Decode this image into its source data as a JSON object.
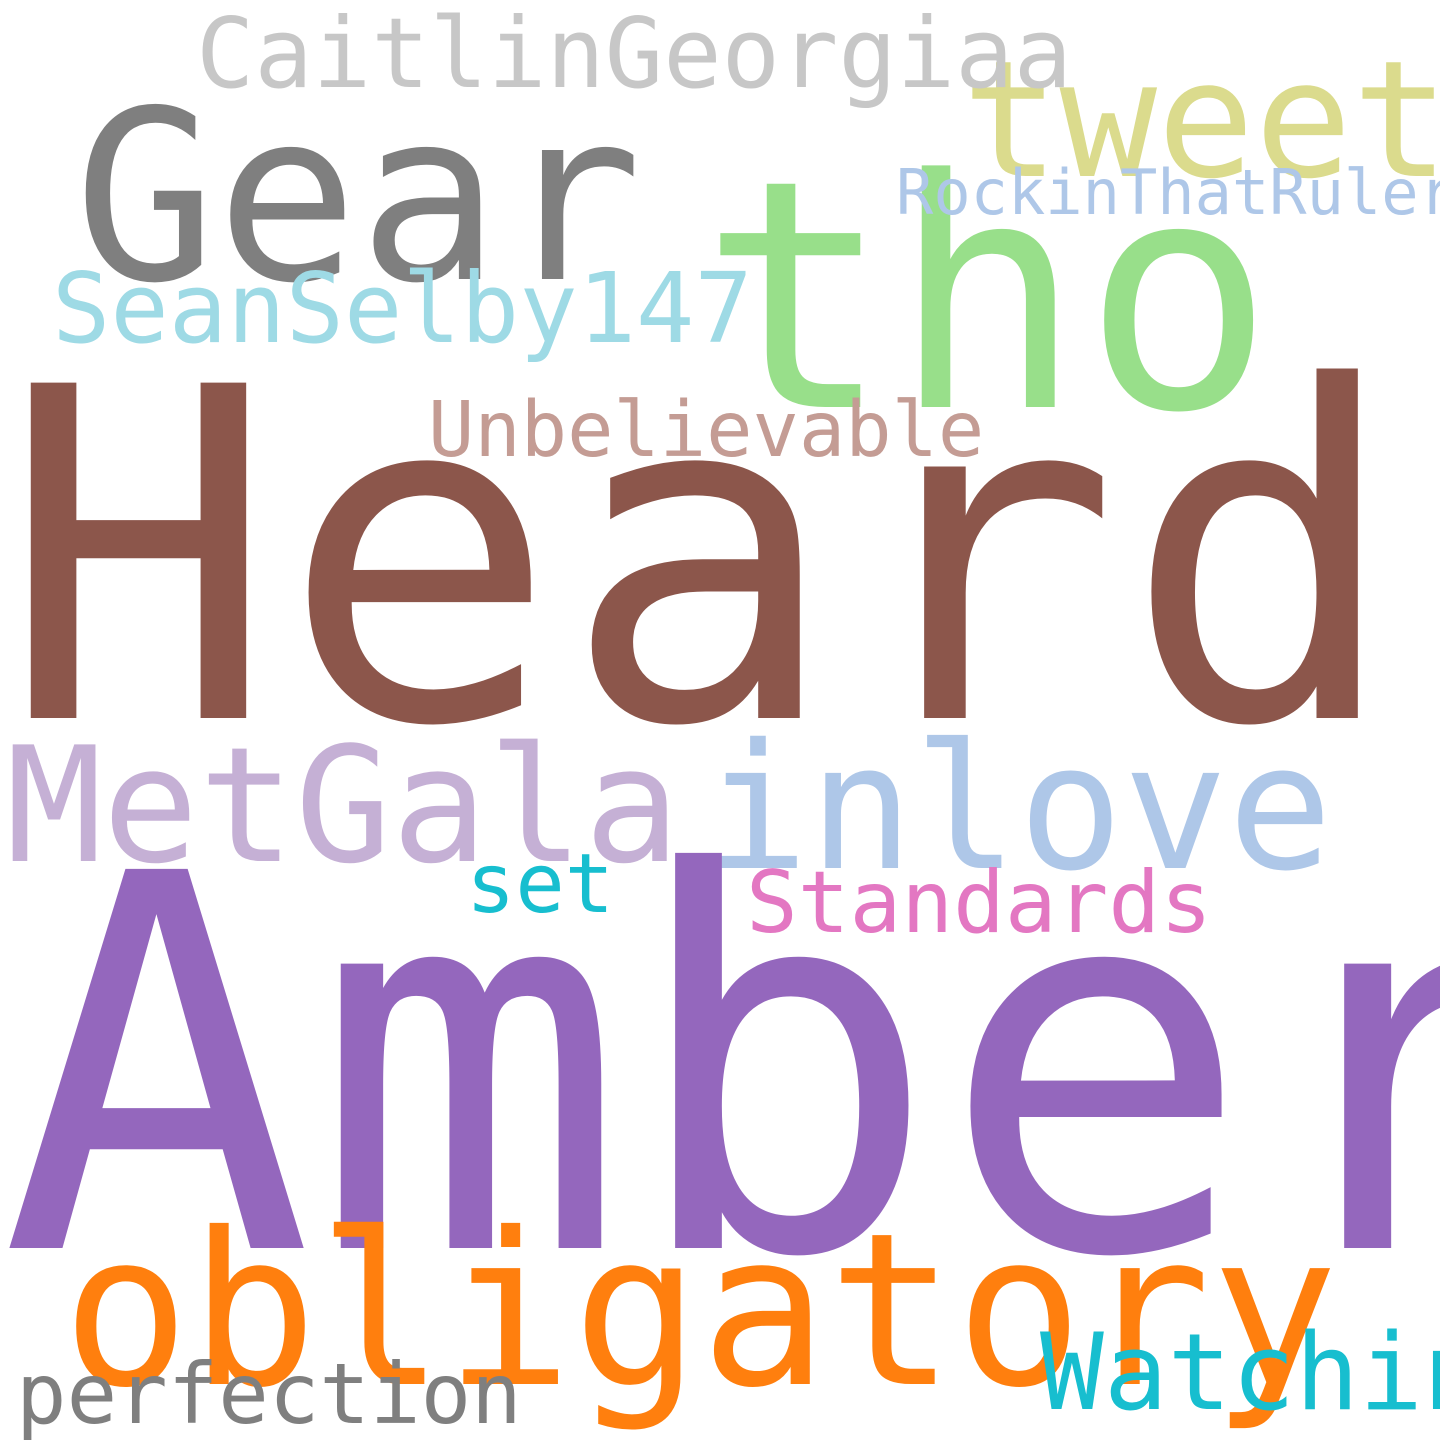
{
  "word_cloud": {
    "words": [
      {
        "text": "Heard",
        "color": "#8c564b"
      },
      {
        "text": "Amber",
        "color": "#9467bd"
      },
      {
        "text": "tho",
        "color": "#98df8a"
      },
      {
        "text": "Gear",
        "color": "#7f7f7f"
      },
      {
        "text": "tweet",
        "color": "#dbdb8d"
      },
      {
        "text": "CaitlinGeorgiaa",
        "color": "#c7c7c7"
      },
      {
        "text": "RockinThatRuler",
        "color": "#aec7e8"
      },
      {
        "text": "SeanSelby147",
        "color": "#9edae5"
      },
      {
        "text": "Unbelievable",
        "color": "#c49c94"
      },
      {
        "text": "MetGala",
        "color": "#c5b0d5"
      },
      {
        "text": "inlove",
        "color": "#aec7e8"
      },
      {
        "text": "set",
        "color": "#17becf"
      },
      {
        "text": "Standards",
        "color": "#e377c2"
      },
      {
        "text": "obligatory",
        "color": "#ff7f0e"
      },
      {
        "text": "Watching",
        "color": "#17becf"
      },
      {
        "text": "perfection",
        "color": "#7f7f7f"
      }
    ]
  }
}
